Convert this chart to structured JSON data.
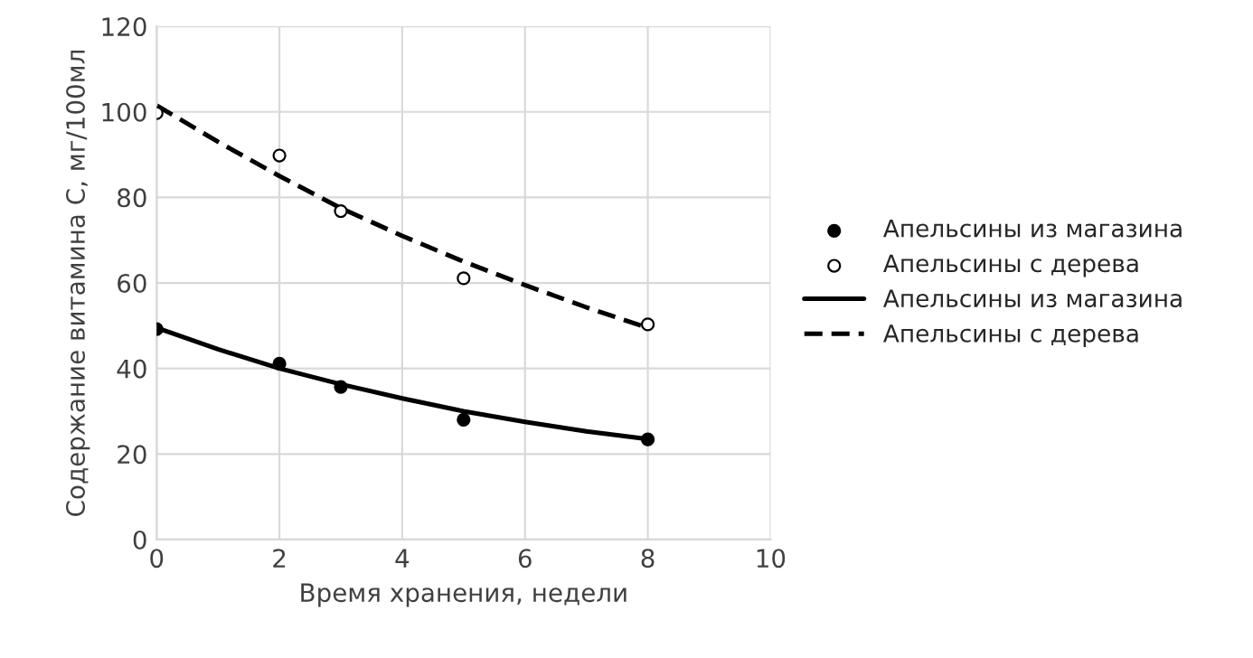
{
  "chart_data": {
    "type": "scatter",
    "xlabel": "Время хранения, недели",
    "ylabel": "Содержание витамина С, мг/100мл",
    "xlim": [
      0,
      10
    ],
    "xticks": [
      0,
      2,
      4,
      6,
      8,
      10
    ],
    "ylim": [
      0,
      120
    ],
    "yticks": [
      0,
      20,
      40,
      60,
      80,
      100,
      120
    ],
    "grid": true,
    "legend": "right",
    "series": [
      {
        "name": "Апельсины из магазина",
        "color": "#000000",
        "marker": "circle",
        "x": [
          0,
          2,
          3,
          5,
          8
        ],
        "values": [
          49.2,
          41.1,
          35.7,
          28.0,
          23.4
        ]
      },
      {
        "name": "Апельсины с дерева",
        "color": "#ffffff",
        "marker": "circle",
        "x": [
          0,
          2,
          3,
          5,
          8
        ],
        "values": [
          99.7,
          89.8,
          76.8,
          61.1,
          50.3
        ]
      },
      {
        "name": "Апельсины из магазина",
        "type": "line",
        "color": "#000000",
        "line_style": "solid",
        "x": [
          0,
          1,
          2,
          3,
          4,
          5,
          6,
          7,
          8
        ],
        "values": [
          49.5,
          44.5,
          40.0,
          36.3,
          33.0,
          30.0,
          27.5,
          25.3,
          23.5
        ]
      },
      {
        "name": "Апельсины с дерева",
        "type": "line",
        "color": "#000000",
        "line_style": "dashed",
        "x": [
          0,
          1,
          2,
          3,
          4,
          5,
          6,
          7,
          8
        ],
        "values": [
          101.5,
          93.0,
          85.0,
          77.5,
          71.0,
          65.0,
          59.5,
          54.3,
          49.5
        ]
      }
    ]
  }
}
